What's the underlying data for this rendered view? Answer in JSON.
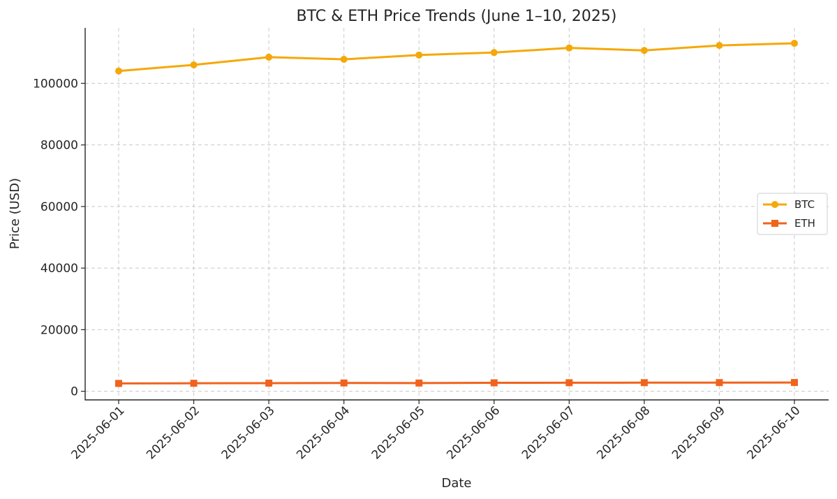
{
  "chart_data": {
    "type": "line",
    "title": "BTC & ETH Price Trends (June 1–10, 2025)",
    "xlabel": "Date",
    "ylabel": "Price (USD)",
    "categories": [
      "2025-06-01",
      "2025-06-02",
      "2025-06-03",
      "2025-06-04",
      "2025-06-05",
      "2025-06-06",
      "2025-06-07",
      "2025-06-08",
      "2025-06-09",
      "2025-06-10"
    ],
    "ylim": [
      -2800,
      118000
    ],
    "yticks": [
      0,
      20000,
      40000,
      60000,
      80000,
      100000
    ],
    "grid": true,
    "legend_position": "center-right",
    "series": [
      {
        "name": "BTC",
        "color": "#F5A80A",
        "marker": "circle",
        "values": [
          104000,
          106000,
          108500,
          107800,
          109200,
          110000,
          111500,
          110700,
          112300,
          113000
        ]
      },
      {
        "name": "ETH",
        "color": "#F0631D",
        "marker": "square",
        "values": [
          2550,
          2600,
          2650,
          2700,
          2680,
          2750,
          2780,
          2800,
          2820,
          2850
        ]
      }
    ]
  }
}
